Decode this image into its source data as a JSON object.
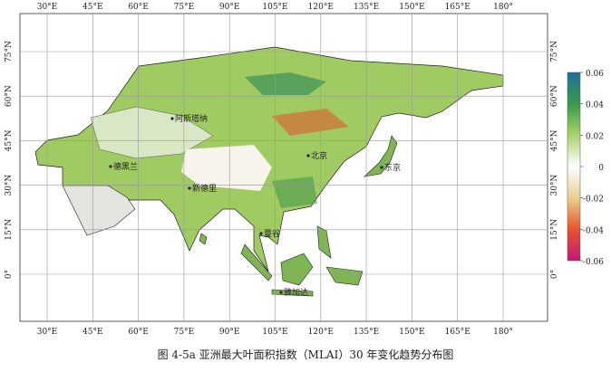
{
  "map": {
    "lon_labels": [
      "30°E",
      "45°E",
      "60°E",
      "75°E",
      "90°E",
      "105°E",
      "120°E",
      "135°E",
      "150°E",
      "165°E",
      "180°"
    ],
    "lat_labels": [
      "75°N",
      "60°N",
      "45°N",
      "30°N",
      "15°N",
      "0°"
    ],
    "cities": [
      "阿斯塔纳",
      "德黑兰",
      "新德里",
      "北京",
      "东京",
      "曼谷",
      "雅加达"
    ],
    "colorbar": {
      "lim": [
        -0.06,
        0.06
      ],
      "ticks": [
        0.06,
        0.04,
        0.02,
        0,
        -0.02,
        -0.04,
        -0.06
      ]
    }
  },
  "caption": "图 4-5a 亚洲最大叶面积指数（MLAI）30 年变化趋势分布图"
}
